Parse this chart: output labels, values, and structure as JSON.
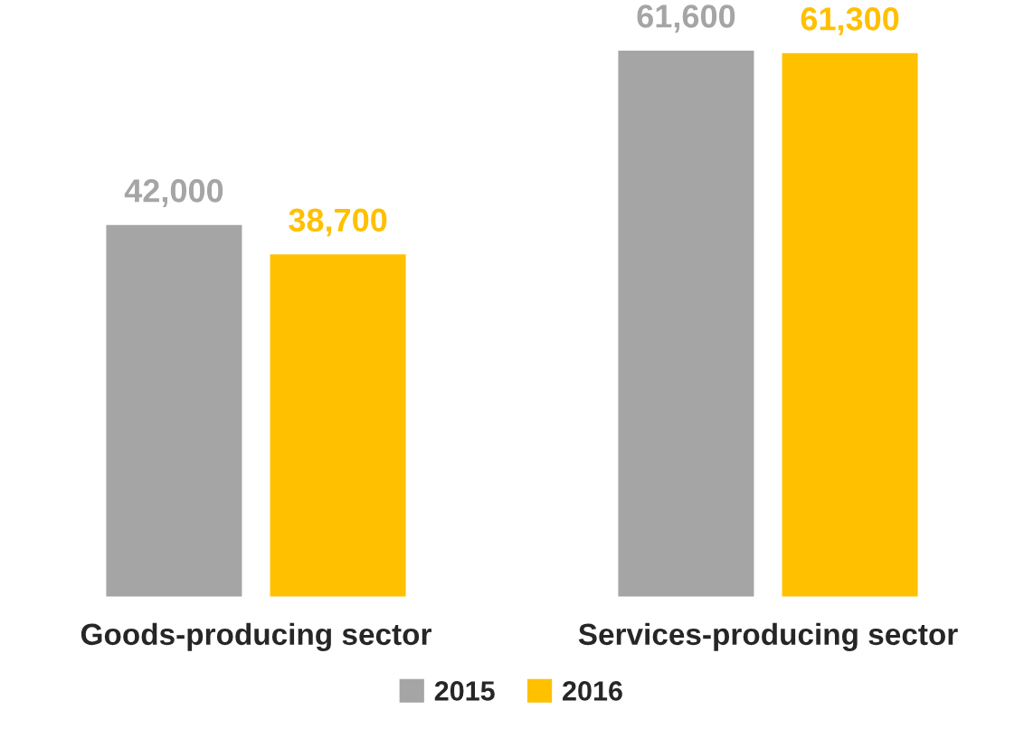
{
  "chart_data": {
    "type": "bar",
    "categories": [
      "Goods-producing sector",
      "Services-producing sector"
    ],
    "series": [
      {
        "name": "2015",
        "color": "#a5a5a5",
        "values": [
          42000,
          61600
        ],
        "value_labels": [
          "42,000",
          "61,600"
        ]
      },
      {
        "name": "2016",
        "color": "#ffc000",
        "values": [
          38700,
          61300
        ],
        "value_labels": [
          "38,700",
          "61,300"
        ]
      }
    ],
    "tick_labels": "x",
    "grid": false,
    "legend": "bottom"
  }
}
